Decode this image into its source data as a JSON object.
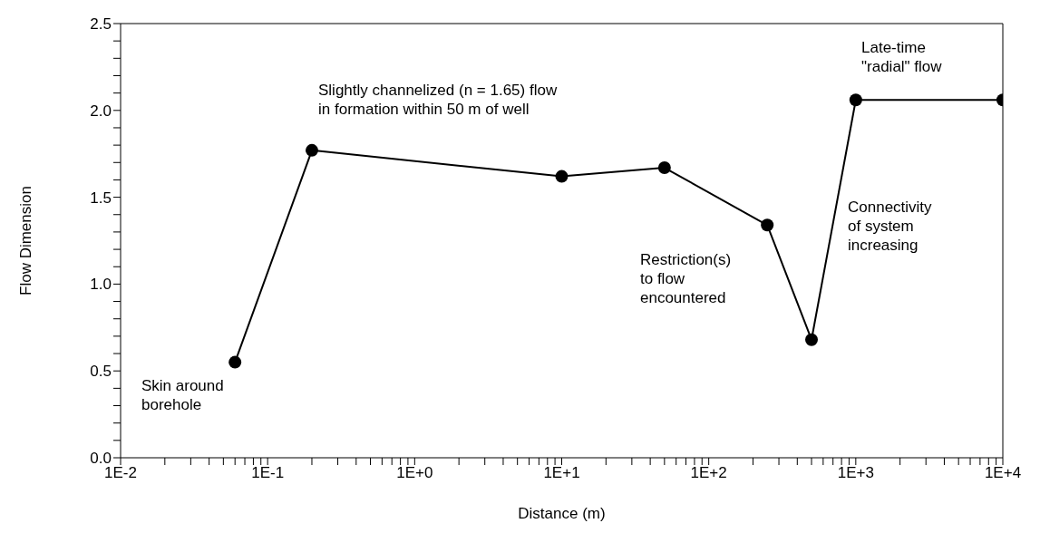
{
  "chart_data": {
    "type": "line",
    "xlabel": "Distance (m)",
    "ylabel": "Flow Dimension",
    "log": "x",
    "marker": "circle",
    "line_style": "solid",
    "grid": false,
    "legend": false,
    "x": [
      0.06,
      0.2,
      10,
      50,
      250,
      500,
      1000,
      10000
    ],
    "series": [
      {
        "color": "#000000",
        "values": [
          0.55,
          1.77,
          1.62,
          1.67,
          1.34,
          0.68,
          2.06,
          2.06
        ]
      }
    ],
    "xlim": [
      0.01,
      10000
    ],
    "ylim": [
      0,
      2.5
    ],
    "xticks": [
      {
        "value": 0.01,
        "label": "1E-2"
      },
      {
        "value": 0.02,
        "label": null
      },
      {
        "value": 0.03,
        "label": null
      },
      {
        "value": 0.04,
        "label": null
      },
      {
        "value": 0.05,
        "label": null
      },
      {
        "value": 0.06,
        "label": null
      },
      {
        "value": 0.07,
        "label": null
      },
      {
        "value": 0.08,
        "label": null
      },
      {
        "value": 0.09,
        "label": null
      },
      {
        "value": 0.1,
        "label": "1E-1"
      },
      {
        "value": 0.2,
        "label": null
      },
      {
        "value": 0.3,
        "label": null
      },
      {
        "value": 0.4,
        "label": null
      },
      {
        "value": 0.5,
        "label": null
      },
      {
        "value": 0.6,
        "label": null
      },
      {
        "value": 0.7,
        "label": null
      },
      {
        "value": 0.8,
        "label": null
      },
      {
        "value": 0.9,
        "label": null
      },
      {
        "value": 1,
        "label": "1E+0"
      },
      {
        "value": 2,
        "label": null
      },
      {
        "value": 3,
        "label": null
      },
      {
        "value": 4,
        "label": null
      },
      {
        "value": 5,
        "label": null
      },
      {
        "value": 6,
        "label": null
      },
      {
        "value": 7,
        "label": null
      },
      {
        "value": 8,
        "label": null
      },
      {
        "value": 9,
        "label": null
      },
      {
        "value": 10,
        "label": "1E+1"
      },
      {
        "value": 20,
        "label": null
      },
      {
        "value": 30,
        "label": null
      },
      {
        "value": 40,
        "label": null
      },
      {
        "value": 50,
        "label": null
      },
      {
        "value": 60,
        "label": null
      },
      {
        "value": 70,
        "label": null
      },
      {
        "value": 80,
        "label": null
      },
      {
        "value": 90,
        "label": null
      },
      {
        "value": 100,
        "label": "1E+2"
      },
      {
        "value": 200,
        "label": null
      },
      {
        "value": 300,
        "label": null
      },
      {
        "value": 400,
        "label": null
      },
      {
        "value": 500,
        "label": null
      },
      {
        "value": 600,
        "label": null
      },
      {
        "value": 700,
        "label": null
      },
      {
        "value": 800,
        "label": null
      },
      {
        "value": 900,
        "label": null
      },
      {
        "value": 1000,
        "label": "1E+3"
      },
      {
        "value": 2000,
        "label": null
      },
      {
        "value": 3000,
        "label": null
      },
      {
        "value": 4000,
        "label": null
      },
      {
        "value": 5000,
        "label": null
      },
      {
        "value": 6000,
        "label": null
      },
      {
        "value": 7000,
        "label": null
      },
      {
        "value": 8000,
        "label": null
      },
      {
        "value": 9000,
        "label": null
      },
      {
        "value": 10000,
        "label": "1E+4"
      }
    ],
    "yticks": [
      {
        "value": 0,
        "label": "0.0"
      },
      {
        "value": 0.1,
        "label": null
      },
      {
        "value": 0.2,
        "label": null
      },
      {
        "value": 0.3,
        "label": null
      },
      {
        "value": 0.4,
        "label": null
      },
      {
        "value": 0.5,
        "label": "0.5"
      },
      {
        "value": 0.6,
        "label": null
      },
      {
        "value": 0.7,
        "label": null
      },
      {
        "value": 0.8,
        "label": null
      },
      {
        "value": 0.9,
        "label": null
      },
      {
        "value": 1,
        "label": "1.0"
      },
      {
        "value": 1.1,
        "label": null
      },
      {
        "value": 1.2,
        "label": null
      },
      {
        "value": 1.3,
        "label": null
      },
      {
        "value": 1.4,
        "label": null
      },
      {
        "value": 1.5,
        "label": "1.5"
      },
      {
        "value": 1.6,
        "label": null
      },
      {
        "value": 1.7,
        "label": null
      },
      {
        "value": 1.8,
        "label": null
      },
      {
        "value": 1.9,
        "label": null
      },
      {
        "value": 2,
        "label": "2.0"
      },
      {
        "value": 2.1,
        "label": null
      },
      {
        "value": 2.2,
        "label": null
      },
      {
        "value": 2.3,
        "label": null
      },
      {
        "value": 2.4,
        "label": null
      },
      {
        "value": 2.5,
        "label": "2.5"
      }
    ],
    "annotations": [
      "Skin around\nborehole",
      "Slightly channelized (n = 1.65) flow\nin formation within 50 m of well",
      "Restriction(s)\nto flow\nencountered",
      "Connectivity\nof system\nincreasing",
      "Late-time\n\"radial\" flow"
    ]
  }
}
